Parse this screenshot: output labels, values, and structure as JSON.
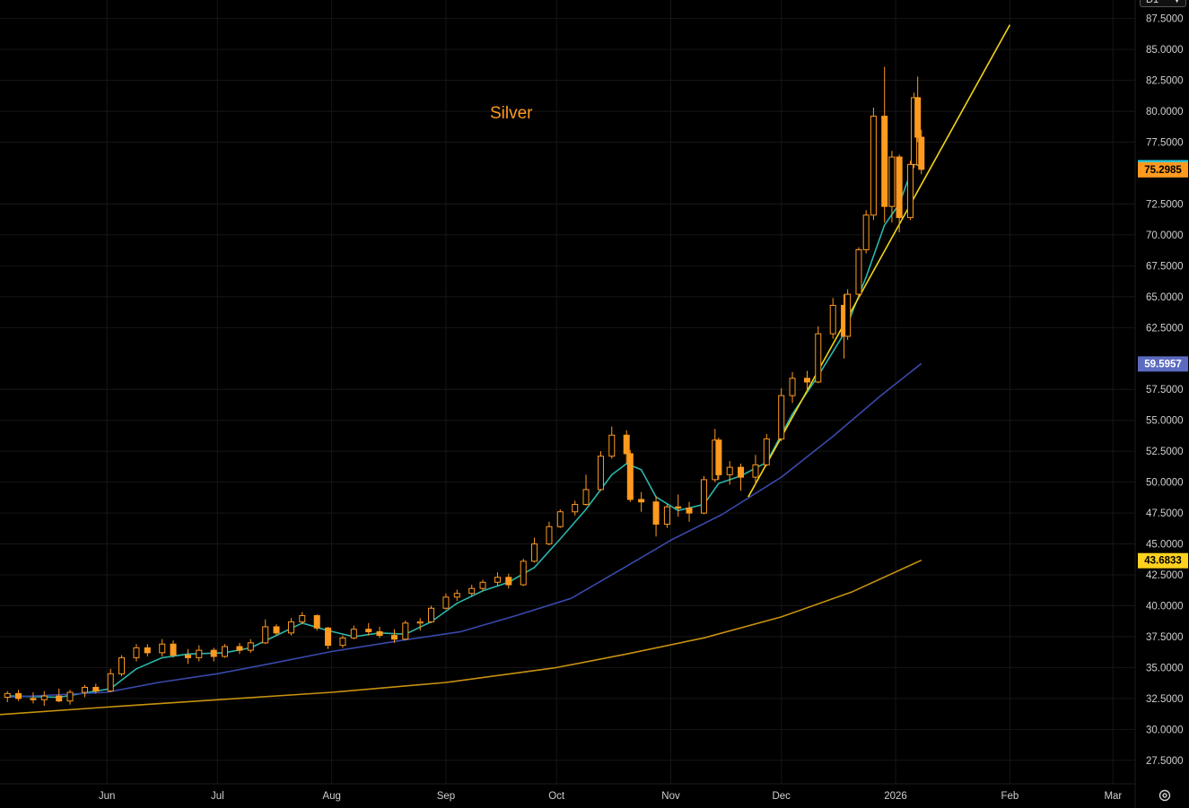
{
  "toolbar": {
    "period_value": "D1",
    "settings_icon": "gear-icon",
    "dropdown_icon": "chevron-down-icon"
  },
  "chart_data": {
    "type": "candlestick",
    "annotation": "Silver",
    "annotation_color": "#ff9a1f",
    "background_color": "#000000",
    "grid": true,
    "ylim": [
      25.6,
      89.0
    ],
    "y_ticks": [
      "87.5000",
      "85.0000",
      "82.5000",
      "80.0000",
      "77.5000",
      "72.5000",
      "70.0000",
      "67.5000",
      "65.0000",
      "62.5000",
      "57.5000",
      "55.0000",
      "52.5000",
      "50.0000",
      "47.5000",
      "45.0000",
      "42.5000",
      "40.0000",
      "37.5000",
      "35.0000",
      "32.5000",
      "30.0000",
      "27.5000"
    ],
    "y_tick_values": [
      87.5,
      85,
      82.5,
      80,
      77.5,
      72.5,
      70,
      67.5,
      65,
      62.5,
      57.5,
      55,
      52.5,
      50,
      47.5,
      45,
      42.5,
      40,
      37.5,
      35,
      32.5,
      30,
      27.5
    ],
    "x_ticks": [
      "Jun",
      "Jul",
      "Aug",
      "Sep",
      "Oct",
      "Nov",
      "Dec",
      "2026",
      "Feb",
      "Mar"
    ],
    "x_tick_dates": [
      "2025-06-01",
      "2025-07-01",
      "2025-08-01",
      "2025-09-01",
      "2025-10-01",
      "2025-11-01",
      "2025-12-01",
      "2026-01-01",
      "2026-02-01",
      "2026-03-01"
    ],
    "x_range": [
      "2025-05-03",
      "2026-03-07"
    ],
    "up_color": "#ff9a1f",
    "down_color": "#ff9a1f",
    "price_tags": [
      {
        "label": "75.4745",
        "value": 75.4745,
        "bg": "#26c6da",
        "fg": "#000000"
      },
      {
        "label": "75.2985",
        "value": 75.2985,
        "bg": "#ff9a1f",
        "fg": "#000000"
      },
      {
        "label": "59.5957",
        "value": 59.5957,
        "bg": "#5c6bc0",
        "fg": "#ffffff"
      },
      {
        "label": "43.6833",
        "value": 43.6833,
        "bg": "#ffd21f",
        "fg": "#000000"
      }
    ],
    "series": [
      {
        "style": "candles",
        "candles": [
          [
            "2025-05-05",
            32.6,
            33.1,
            32.2,
            32.9
          ],
          [
            "2025-05-08",
            32.9,
            33.2,
            32.3,
            32.5
          ],
          [
            "2025-05-12",
            32.5,
            33.0,
            32.1,
            32.4
          ],
          [
            "2025-05-15",
            32.4,
            33.1,
            31.9,
            32.7
          ],
          [
            "2025-05-19",
            32.7,
            33.3,
            32.2,
            32.3
          ],
          [
            "2025-05-22",
            32.3,
            33.2,
            32.0,
            33.0
          ],
          [
            "2025-05-26",
            33.0,
            33.6,
            32.6,
            33.4
          ],
          [
            "2025-05-29",
            33.4,
            33.7,
            32.9,
            33.1
          ],
          [
            "2025-06-02",
            33.1,
            34.9,
            33.0,
            34.5
          ],
          [
            "2025-06-05",
            34.5,
            36.0,
            34.3,
            35.8
          ],
          [
            "2025-06-09",
            35.8,
            36.9,
            35.5,
            36.6
          ],
          [
            "2025-06-12",
            36.6,
            36.9,
            35.9,
            36.2
          ],
          [
            "2025-06-16",
            36.2,
            37.3,
            35.9,
            36.9
          ],
          [
            "2025-06-19",
            36.9,
            37.2,
            35.8,
            36.0
          ],
          [
            "2025-06-23",
            36.0,
            36.5,
            35.3,
            35.8
          ],
          [
            "2025-06-26",
            35.8,
            36.8,
            35.5,
            36.4
          ],
          [
            "2025-06-30",
            36.4,
            36.6,
            35.5,
            35.9
          ],
          [
            "2025-07-03",
            35.9,
            36.9,
            35.8,
            36.7
          ],
          [
            "2025-07-07",
            36.7,
            37.0,
            36.1,
            36.4
          ],
          [
            "2025-07-10",
            36.4,
            37.3,
            36.2,
            37.0
          ],
          [
            "2025-07-14",
            37.0,
            38.9,
            36.9,
            38.3
          ],
          [
            "2025-07-17",
            38.3,
            38.5,
            37.6,
            37.8
          ],
          [
            "2025-07-21",
            37.8,
            39.0,
            37.6,
            38.7
          ],
          [
            "2025-07-24",
            38.7,
            39.5,
            38.5,
            39.2
          ],
          [
            "2025-07-28",
            39.2,
            39.3,
            38.0,
            38.2
          ],
          [
            "2025-07-31",
            38.2,
            38.3,
            36.5,
            36.8
          ],
          [
            "2025-08-04",
            36.8,
            37.6,
            36.6,
            37.4
          ],
          [
            "2025-08-07",
            37.4,
            38.4,
            37.3,
            38.1
          ],
          [
            "2025-08-11",
            38.1,
            38.6,
            37.6,
            37.9
          ],
          [
            "2025-08-14",
            37.9,
            38.3,
            37.4,
            37.6
          ],
          [
            "2025-08-18",
            37.6,
            38.1,
            37.0,
            37.3
          ],
          [
            "2025-08-21",
            37.3,
            38.8,
            37.2,
            38.6
          ],
          [
            "2025-08-25",
            38.6,
            39.0,
            38.0,
            38.7
          ],
          [
            "2025-08-28",
            38.7,
            40.0,
            38.6,
            39.8
          ],
          [
            "2025-09-01",
            39.8,
            41.0,
            39.7,
            40.7
          ],
          [
            "2025-09-04",
            40.7,
            41.3,
            40.4,
            41.0
          ],
          [
            "2025-09-08",
            41.0,
            41.7,
            40.8,
            41.4
          ],
          [
            "2025-09-11",
            41.4,
            42.1,
            41.2,
            41.9
          ],
          [
            "2025-09-15",
            41.9,
            42.7,
            41.6,
            42.3
          ],
          [
            "2025-09-18",
            42.3,
            42.6,
            41.4,
            41.7
          ],
          [
            "2025-09-22",
            41.7,
            43.8,
            41.6,
            43.6
          ],
          [
            "2025-09-25",
            43.6,
            45.5,
            43.5,
            45.0
          ],
          [
            "2025-09-29",
            45.0,
            46.8,
            44.9,
            46.4
          ],
          [
            "2025-10-02",
            46.4,
            47.8,
            46.3,
            47.6
          ],
          [
            "2025-10-06",
            47.6,
            48.5,
            47.3,
            48.2
          ],
          [
            "2025-10-09",
            48.2,
            50.6,
            48.1,
            49.4
          ],
          [
            "2025-10-13",
            49.4,
            52.5,
            49.3,
            52.1
          ],
          [
            "2025-10-16",
            52.1,
            54.5,
            51.9,
            53.8
          ],
          [
            "2025-10-20",
            53.8,
            54.2,
            51.5,
            52.3
          ],
          [
            "2025-10-21",
            52.3,
            52.6,
            48.4,
            48.6
          ],
          [
            "2025-10-24",
            48.6,
            49.2,
            47.6,
            48.4
          ],
          [
            "2025-10-28",
            48.4,
            48.9,
            45.6,
            46.6
          ],
          [
            "2025-10-31",
            46.6,
            48.2,
            46.3,
            48.0
          ],
          [
            "2025-11-03",
            48.0,
            49.0,
            47.2,
            47.9
          ],
          [
            "2025-11-06",
            47.9,
            48.4,
            46.8,
            47.5
          ],
          [
            "2025-11-10",
            47.5,
            50.5,
            47.4,
            50.2
          ],
          [
            "2025-11-13",
            50.2,
            54.3,
            50.0,
            53.4
          ],
          [
            "2025-11-14",
            53.4,
            53.6,
            50.2,
            50.6
          ],
          [
            "2025-11-17",
            50.6,
            51.7,
            49.8,
            51.2
          ],
          [
            "2025-11-20",
            51.2,
            51.5,
            49.3,
            50.4
          ],
          [
            "2025-11-24",
            50.4,
            52.2,
            49.8,
            51.4
          ],
          [
            "2025-11-27",
            51.4,
            53.9,
            51.3,
            53.5
          ],
          [
            "2025-12-01",
            53.5,
            57.6,
            53.3,
            57.0
          ],
          [
            "2025-12-04",
            57.0,
            58.9,
            56.4,
            58.4
          ],
          [
            "2025-12-08",
            58.4,
            59.0,
            57.3,
            58.1
          ],
          [
            "2025-12-11",
            58.1,
            62.6,
            58.0,
            62.0
          ],
          [
            "2025-12-15",
            62.0,
            64.9,
            61.6,
            64.3
          ],
          [
            "2025-12-18",
            64.3,
            65.2,
            60.0,
            61.8
          ],
          [
            "2025-12-19",
            61.8,
            65.6,
            61.5,
            65.2
          ],
          [
            "2025-12-22",
            65.2,
            69.0,
            64.9,
            68.8
          ],
          [
            "2025-12-24",
            68.8,
            72.0,
            68.5,
            71.6
          ],
          [
            "2025-12-26",
            71.6,
            80.3,
            71.2,
            79.6
          ],
          [
            "2025-12-29",
            79.6,
            83.6,
            71.0,
            72.3
          ],
          [
            "2025-12-31",
            72.3,
            76.8,
            71.0,
            76.3
          ],
          [
            "2026-01-02",
            76.3,
            76.5,
            70.2,
            71.4
          ],
          [
            "2026-01-05",
            71.4,
            76.0,
            71.2,
            75.7
          ],
          [
            "2026-01-06",
            75.7,
            81.5,
            75.4,
            81.1
          ],
          [
            "2026-01-07",
            81.1,
            82.8,
            77.5,
            77.9
          ],
          [
            "2026-01-08",
            77.9,
            78.5,
            74.9,
            75.3
          ]
        ]
      },
      {
        "style": "line",
        "color": "#2bb6aa",
        "points": [
          [
            "2025-05-05",
            32.7
          ],
          [
            "2025-05-19",
            32.6
          ],
          [
            "2025-06-02",
            33.3
          ],
          [
            "2025-06-09",
            34.9
          ],
          [
            "2025-06-16",
            35.8
          ],
          [
            "2025-06-23",
            36.1
          ],
          [
            "2025-07-03",
            36.2
          ],
          [
            "2025-07-10",
            36.6
          ],
          [
            "2025-07-17",
            37.6
          ],
          [
            "2025-07-24",
            38.6
          ],
          [
            "2025-07-31",
            38.0
          ],
          [
            "2025-08-07",
            37.5
          ],
          [
            "2025-08-14",
            37.8
          ],
          [
            "2025-08-21",
            37.7
          ],
          [
            "2025-08-28",
            38.7
          ],
          [
            "2025-09-04",
            40.2
          ],
          [
            "2025-09-11",
            41.2
          ],
          [
            "2025-09-18",
            41.9
          ],
          [
            "2025-09-25",
            43.1
          ],
          [
            "2025-10-02",
            45.4
          ],
          [
            "2025-10-09",
            47.8
          ],
          [
            "2025-10-16",
            50.6
          ],
          [
            "2025-10-20",
            51.5
          ],
          [
            "2025-10-24",
            51.0
          ],
          [
            "2025-10-28",
            48.8
          ],
          [
            "2025-11-03",
            47.7
          ],
          [
            "2025-11-10",
            48.2
          ],
          [
            "2025-11-14",
            49.9
          ],
          [
            "2025-11-20",
            50.5
          ],
          [
            "2025-11-27",
            51.6
          ],
          [
            "2025-12-04",
            55.5
          ],
          [
            "2025-12-11",
            58.6
          ],
          [
            "2025-12-18",
            62.0
          ],
          [
            "2025-12-24",
            66.6
          ],
          [
            "2025-12-29",
            70.8
          ],
          [
            "2026-01-02",
            72.5
          ],
          [
            "2026-01-06",
            75.8
          ],
          [
            "2026-01-08",
            75.4745
          ]
        ]
      },
      {
        "style": "line",
        "color": "#3949ab",
        "points": [
          [
            "2025-05-05",
            32.6
          ],
          [
            "2025-06-01",
            33.0
          ],
          [
            "2025-06-15",
            33.8
          ],
          [
            "2025-07-01",
            34.5
          ],
          [
            "2025-07-15",
            35.3
          ],
          [
            "2025-08-01",
            36.3
          ],
          [
            "2025-08-20",
            37.2
          ],
          [
            "2025-09-05",
            37.9
          ],
          [
            "2025-09-20",
            39.2
          ],
          [
            "2025-10-05",
            40.6
          ],
          [
            "2025-10-20",
            43.2
          ],
          [
            "2025-11-01",
            45.3
          ],
          [
            "2025-11-15",
            47.4
          ],
          [
            "2025-12-01",
            50.4
          ],
          [
            "2025-12-15",
            53.7
          ],
          [
            "2025-12-28",
            57.0
          ],
          [
            "2026-01-08",
            59.5957
          ]
        ]
      },
      {
        "style": "line",
        "color": "#c8920f",
        "points": [
          [
            "2025-05-03",
            31.2
          ],
          [
            "2025-06-01",
            31.8
          ],
          [
            "2025-07-01",
            32.4
          ],
          [
            "2025-08-01",
            33.0
          ],
          [
            "2025-09-01",
            33.8
          ],
          [
            "2025-10-01",
            35.0
          ],
          [
            "2025-10-20",
            36.1
          ],
          [
            "2025-11-10",
            37.4
          ],
          [
            "2025-12-01",
            39.1
          ],
          [
            "2025-12-20",
            41.1
          ],
          [
            "2026-01-08",
            43.6833
          ]
        ]
      },
      {
        "style": "line",
        "color": "#f2d417",
        "points": [
          [
            "2025-11-22",
            48.8
          ],
          [
            "2026-02-01",
            87.0
          ]
        ]
      }
    ]
  }
}
